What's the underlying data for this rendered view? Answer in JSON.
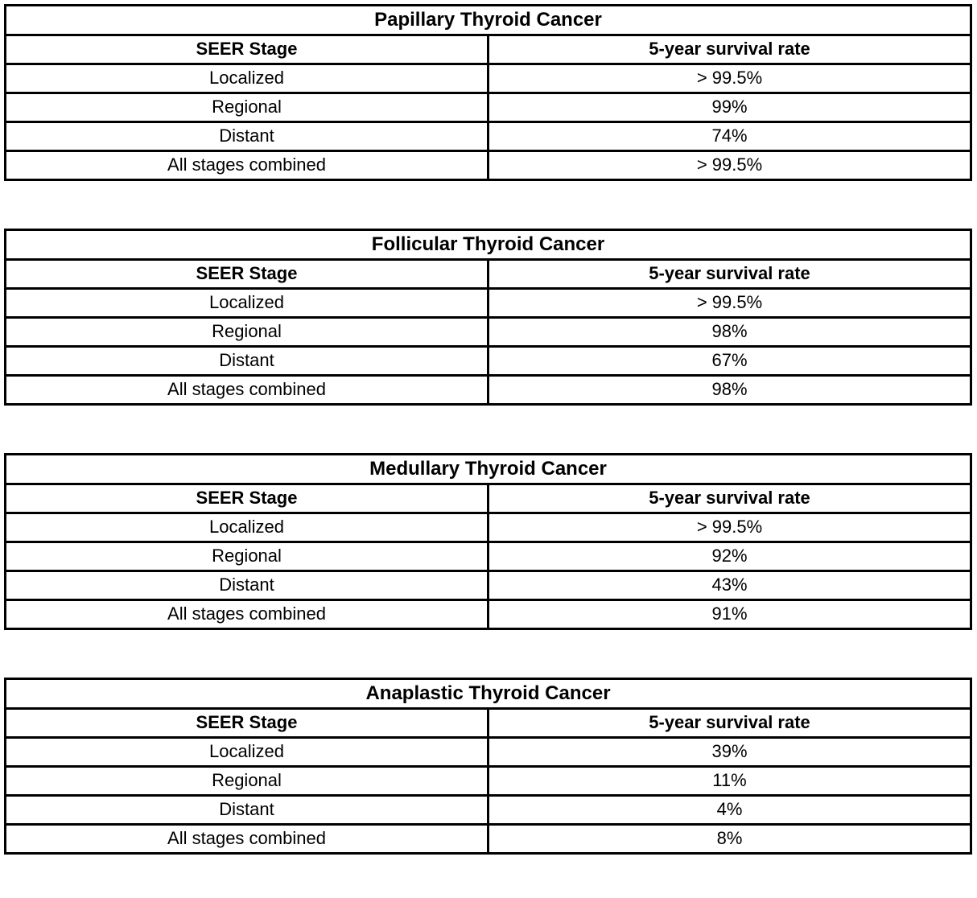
{
  "page": {
    "background_color": "#ffffff",
    "border_color": "#000000",
    "text_color": "#000000"
  },
  "tables": [
    {
      "title": "Papillary Thyroid Cancer",
      "headers": [
        "SEER Stage",
        "5-year survival rate"
      ],
      "rows": [
        {
          "stage": "Localized",
          "rate": "> 99.5%"
        },
        {
          "stage": "Regional",
          "rate": "99%"
        },
        {
          "stage": "Distant",
          "rate": "74%"
        },
        {
          "stage": "All stages combined",
          "rate": "> 99.5%"
        }
      ]
    },
    {
      "title": "Follicular Thyroid Cancer",
      "headers": [
        "SEER Stage",
        "5-year survival rate"
      ],
      "rows": [
        {
          "stage": "Localized",
          "rate": "> 99.5%"
        },
        {
          "stage": "Regional",
          "rate": "98%"
        },
        {
          "stage": "Distant",
          "rate": "67%"
        },
        {
          "stage": "All stages combined",
          "rate": "98%"
        }
      ]
    },
    {
      "title": "Medullary Thyroid Cancer",
      "headers": [
        "SEER Stage",
        "5-year survival rate"
      ],
      "rows": [
        {
          "stage": "Localized",
          "rate": "> 99.5%"
        },
        {
          "stage": "Regional",
          "rate": "92%"
        },
        {
          "stage": "Distant",
          "rate": "43%"
        },
        {
          "stage": "All stages combined",
          "rate": "91%"
        }
      ]
    },
    {
      "title": "Anaplastic Thyroid Cancer",
      "headers": [
        "SEER Stage",
        "5-year survival rate"
      ],
      "rows": [
        {
          "stage": "Localized",
          "rate": "39%"
        },
        {
          "stage": "Regional",
          "rate": "11%"
        },
        {
          "stage": "Distant",
          "rate": "4%"
        },
        {
          "stage": "All stages combined",
          "rate": "8%"
        }
      ]
    }
  ]
}
